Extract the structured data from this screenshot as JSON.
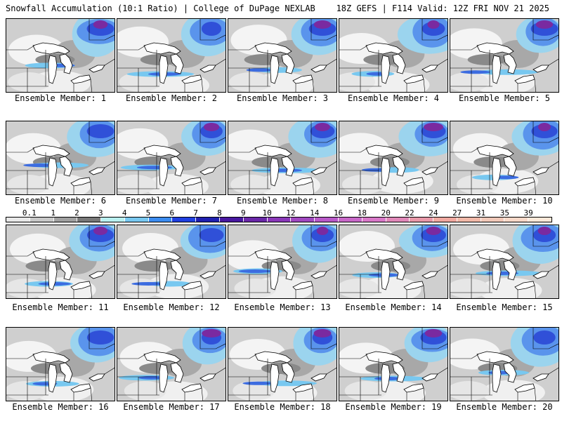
{
  "header": {
    "title_left": "Snowfall Accumulation (10:1 Ratio) | College of DuPage NEXLAB",
    "title_right": "18Z GEFS | F114 Valid: 12Z FRI NOV 21 2025"
  },
  "members": [
    {
      "label": "Ensemble Member: 1"
    },
    {
      "label": "Ensemble Member: 2"
    },
    {
      "label": "Ensemble Member: 3"
    },
    {
      "label": "Ensemble Member: 4"
    },
    {
      "label": "Ensemble Member: 5"
    },
    {
      "label": "Ensemble Member: 6"
    },
    {
      "label": "Ensemble Member: 7"
    },
    {
      "label": "Ensemble Member: 8"
    },
    {
      "label": "Ensemble Member: 9"
    },
    {
      "label": "Ensemble Member: 10"
    },
    {
      "label": "Ensemble Member: 11"
    },
    {
      "label": "Ensemble Member: 12"
    },
    {
      "label": "Ensemble Member: 13"
    },
    {
      "label": "Ensemble Member: 14"
    },
    {
      "label": "Ensemble Member: 15"
    },
    {
      "label": "Ensemble Member: 16"
    },
    {
      "label": "Ensemble Member: 17"
    },
    {
      "label": "Ensemble Member: 18"
    },
    {
      "label": "Ensemble Member: 19"
    },
    {
      "label": "Ensemble Member: 20"
    }
  ],
  "colorbar": {
    "ticks": [
      "0.1",
      "1",
      "2",
      "3",
      "4",
      "5",
      "6",
      "7",
      "8",
      "9",
      "10",
      "12",
      "14",
      "16",
      "18",
      "20",
      "22",
      "24",
      "27",
      "31",
      "35",
      "39"
    ],
    "colors": [
      "#e8e8e8",
      "#c8c8c8",
      "#a0a0a0",
      "#787878",
      "#b8f0f0",
      "#78c8f0",
      "#3c8cf0",
      "#2040e0",
      "#2020b0",
      "#4818a0",
      "#6a28a8",
      "#8a38b8",
      "#a048c0",
      "#b858c8",
      "#c868c8",
      "#d878c8",
      "#e088b8",
      "#e898a8",
      "#f0a8a0",
      "#f0b8a8",
      "#f0c8b8",
      "#f8d8c8",
      "#fce8d8"
    ]
  }
}
